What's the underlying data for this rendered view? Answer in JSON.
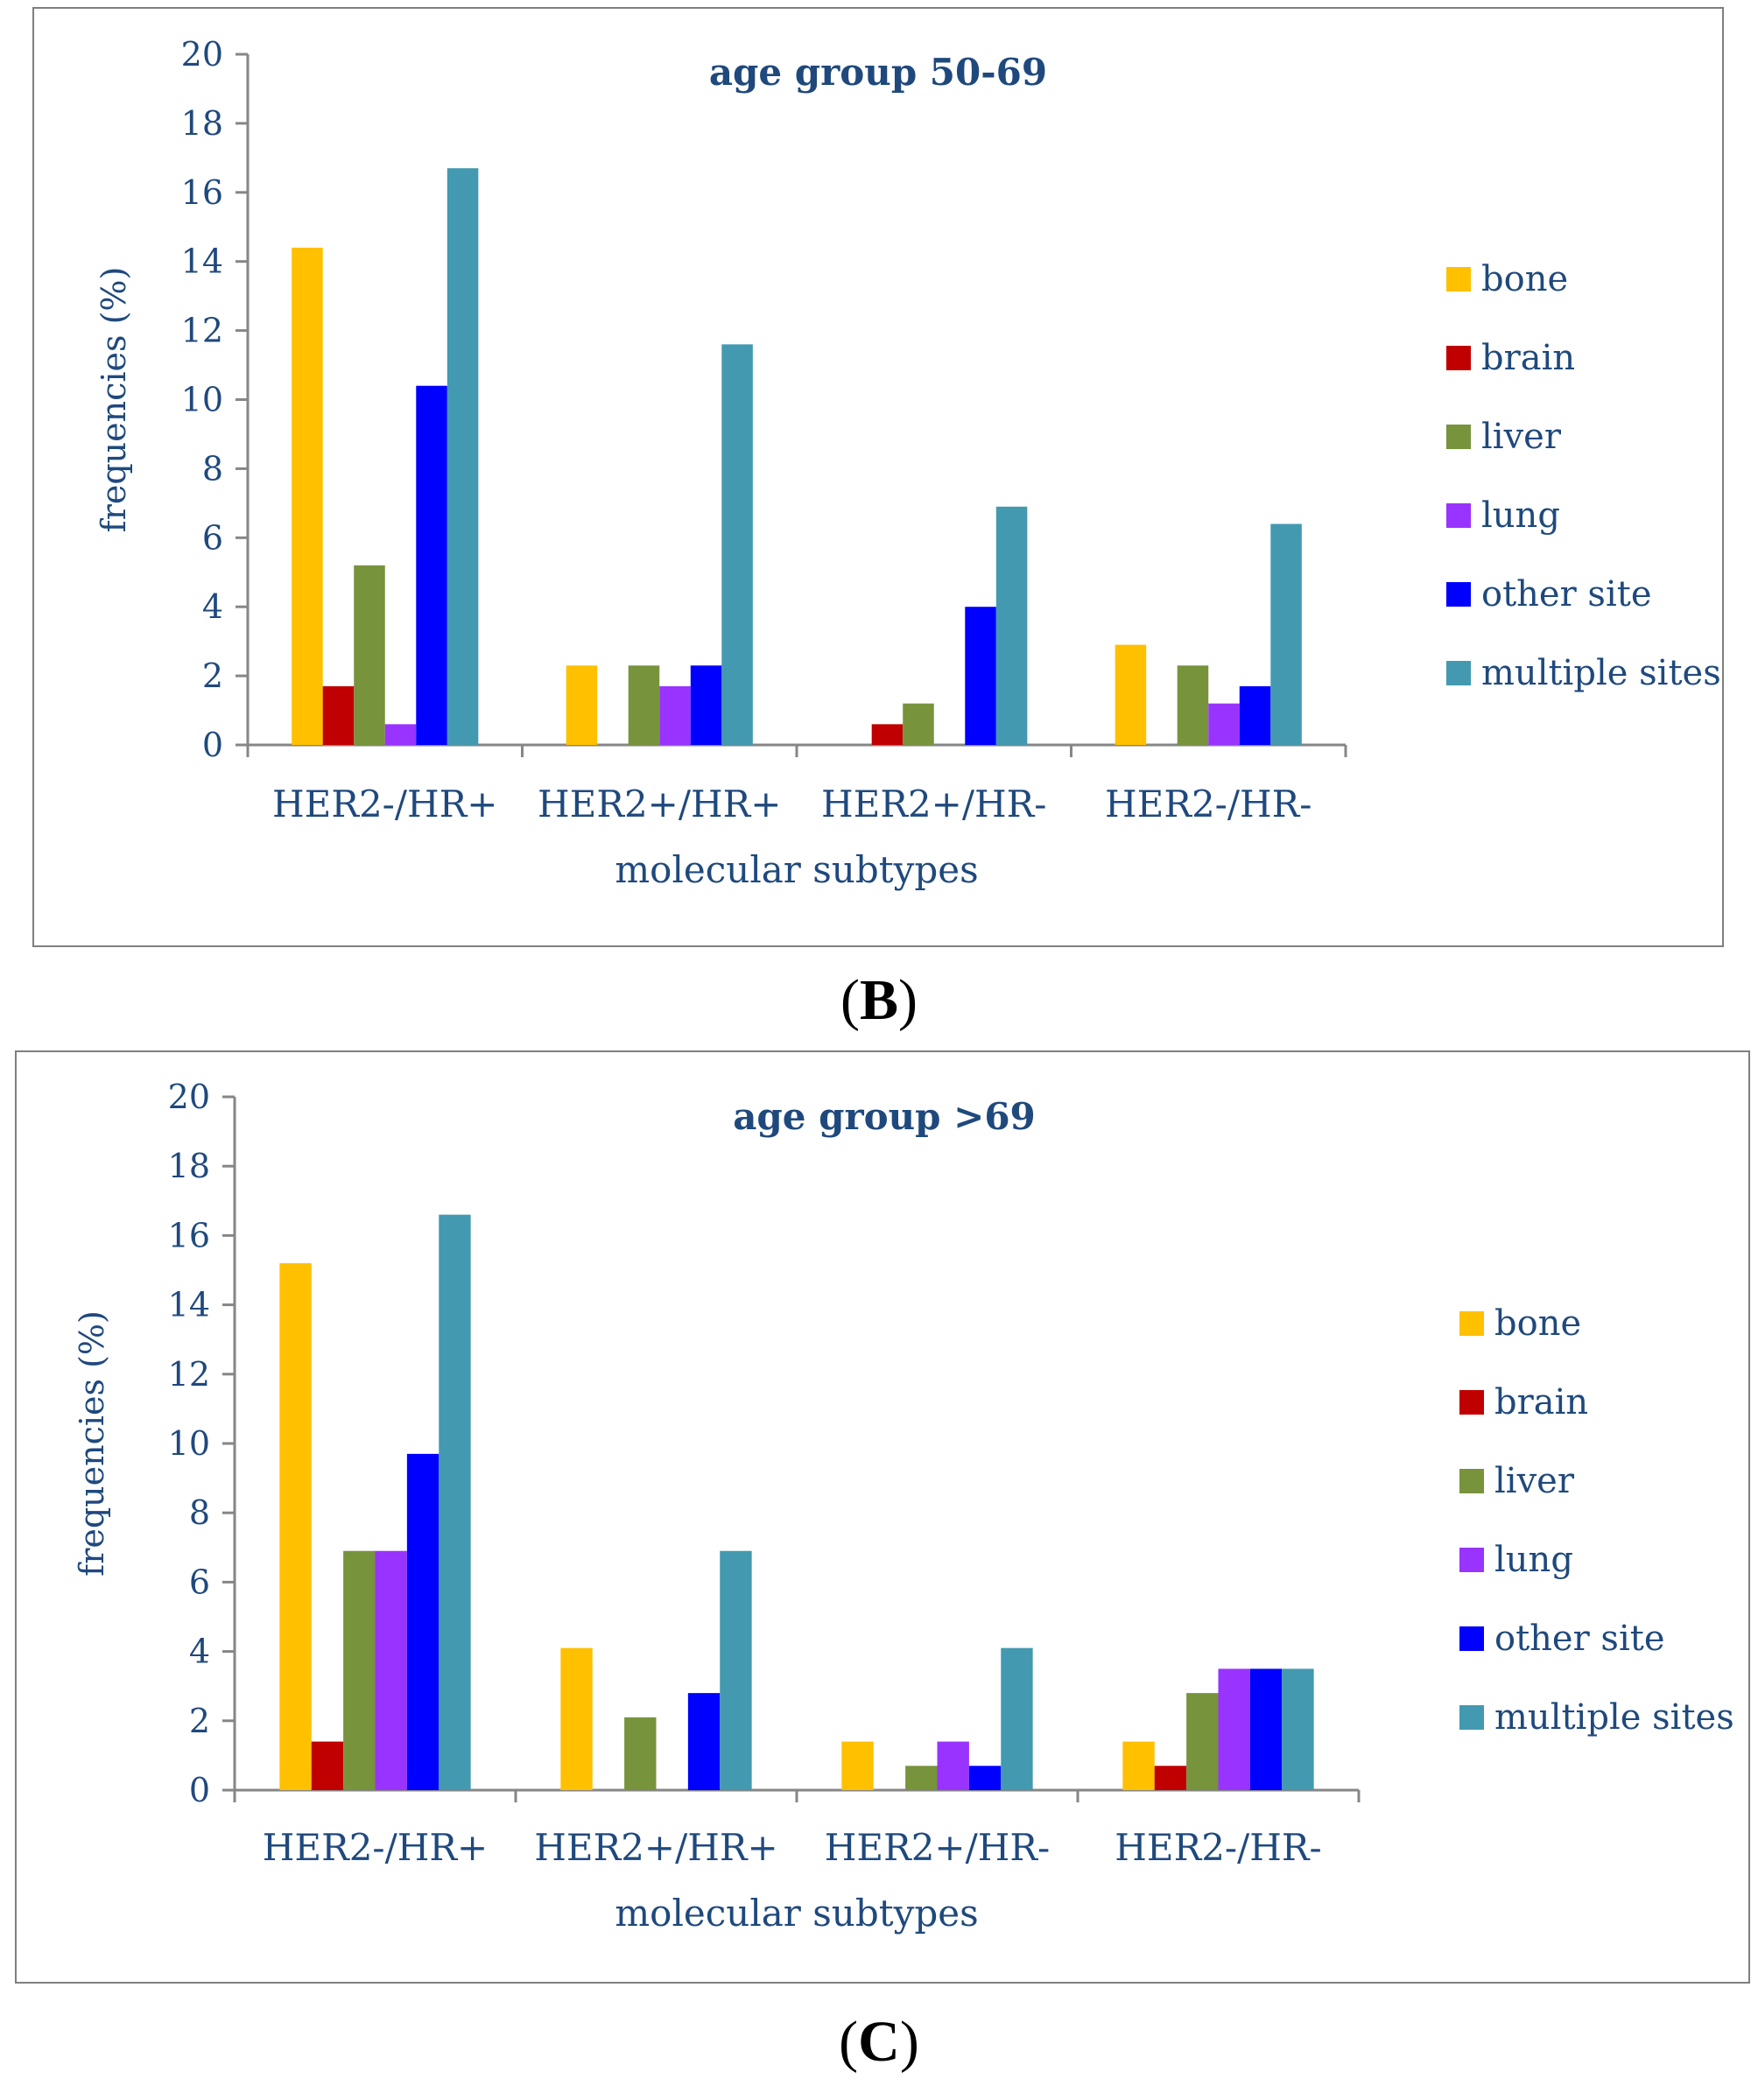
{
  "panels": [
    {
      "label_open": "(",
      "label_letter": "B",
      "label_close": ")",
      "chart_data": {
        "type": "bar",
        "title": "age group  50-69",
        "xlabel": "molecular subtypes",
        "ylabel": "frequencies (%)",
        "ylim": [
          0,
          20
        ],
        "yticks": [
          0,
          2,
          4,
          6,
          8,
          10,
          12,
          14,
          16,
          18,
          20
        ],
        "grid": false,
        "legend_position": "right",
        "categories": [
          "HER2-/HR+",
          "HER2+/HR+",
          "HER2+/HR-",
          "HER2-/HR-"
        ],
        "series": [
          {
            "name": "bone",
            "color": "#ffc000",
            "values": [
              14.4,
              2.3,
              0,
              2.9
            ]
          },
          {
            "name": "brain",
            "color": "#c00000",
            "values": [
              1.7,
              0,
              0.6,
              0
            ]
          },
          {
            "name": "liver",
            "color": "#77933c",
            "values": [
              5.2,
              2.3,
              1.2,
              2.3
            ]
          },
          {
            "name": "lung",
            "color": "#9933ff",
            "values": [
              0.6,
              1.7,
              0,
              1.2
            ]
          },
          {
            "name": "other site",
            "color": "#0000ff",
            "values": [
              10.4,
              2.3,
              4.0,
              1.7
            ]
          },
          {
            "name": "multiple sites",
            "color": "#4399b0",
            "values": [
              16.7,
              11.6,
              6.9,
              6.4
            ]
          }
        ]
      }
    },
    {
      "label_open": "(",
      "label_letter": "C",
      "label_close": ")",
      "chart_data": {
        "type": "bar",
        "title": "age group  >69",
        "xlabel": "molecular subtypes",
        "ylabel": "frequencies (%)",
        "ylim": [
          0,
          20
        ],
        "yticks": [
          0,
          2,
          4,
          6,
          8,
          10,
          12,
          14,
          16,
          18,
          20
        ],
        "grid": false,
        "legend_position": "right",
        "categories": [
          "HER2-/HR+",
          "HER2+/HR+",
          "HER2+/HR-",
          "HER2-/HR-"
        ],
        "series": [
          {
            "name": "bone",
            "color": "#ffc000",
            "values": [
              15.2,
              4.1,
              1.4,
              1.4
            ]
          },
          {
            "name": "brain",
            "color": "#c00000",
            "values": [
              1.4,
              0,
              0,
              0.7
            ]
          },
          {
            "name": "liver",
            "color": "#77933c",
            "values": [
              6.9,
              2.1,
              0.7,
              2.8
            ]
          },
          {
            "name": "lung",
            "color": "#9933ff",
            "values": [
              6.9,
              0,
              1.4,
              3.5
            ]
          },
          {
            "name": "other site",
            "color": "#0000ff",
            "values": [
              9.7,
              2.8,
              0.7,
              3.5
            ]
          },
          {
            "name": "multiple sites",
            "color": "#4399b0",
            "values": [
              16.6,
              6.9,
              4.1,
              3.5
            ]
          }
        ]
      }
    }
  ]
}
